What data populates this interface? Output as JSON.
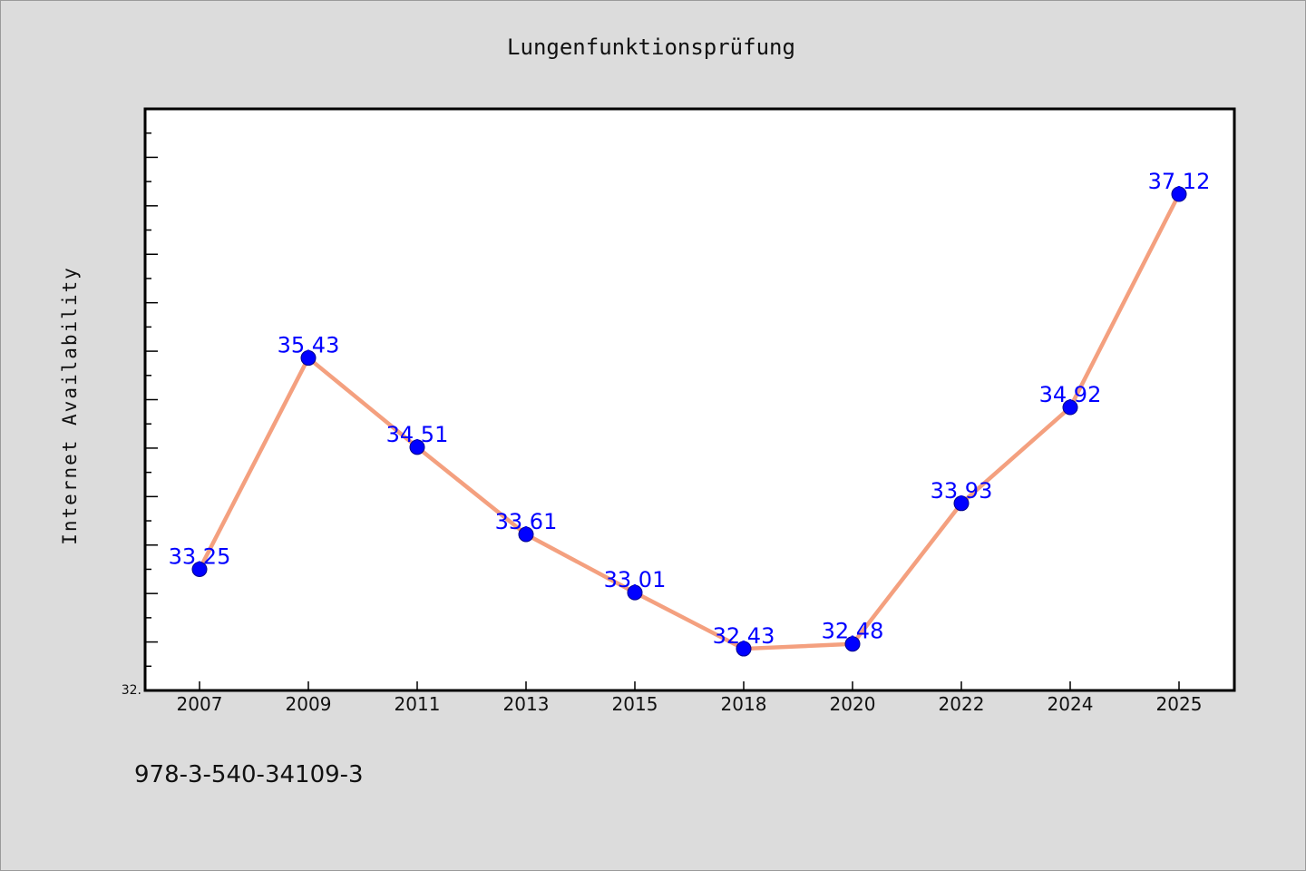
{
  "chart_data": {
    "type": "line",
    "title": "Lungenfunktionsprüfung",
    "xlabel": "",
    "ylabel": "Internet Availability",
    "categories": [
      "2007",
      "2009",
      "2011",
      "2013",
      "2015",
      "2018",
      "2020",
      "2022",
      "2024",
      "2025"
    ],
    "series": [
      {
        "values": [
          33.25,
          35.43,
          34.51,
          33.61,
          33.01,
          32.43,
          32.48,
          33.93,
          34.92,
          37.12
        ],
        "color": "#f4a07f",
        "marker_color": "#0000ff"
      }
    ],
    "data_labels": [
      "33.25",
      "35.43",
      "34.51",
      "33.61",
      "33.01",
      "32.43",
      "32.48",
      "33.93",
      "34.92",
      "37.12"
    ],
    "ylim": [
      32.0,
      38.0
    ],
    "ytick_labels": [
      "32."
    ],
    "grid": false,
    "legend": "none"
  },
  "footer": {
    "isbn": "978-3-540-34109-3"
  }
}
